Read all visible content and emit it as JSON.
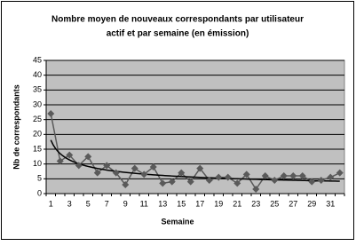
{
  "chart_data": {
    "type": "line",
    "title": [
      "Nombre moyen de nouveaux correspondants par utilisateur",
      "actif et par semaine (en émission)"
    ],
    "x_label": "Semaine",
    "y_label": "Nb de correspondants",
    "categories": [
      1,
      null,
      3,
      null,
      5,
      null,
      7,
      null,
      9,
      null,
      11,
      null,
      13,
      null,
      15,
      null,
      17,
      null,
      19,
      null,
      21,
      null,
      23,
      null,
      25,
      null,
      27,
      null,
      29,
      null,
      31,
      null
    ],
    "series": [
      {
        "color": "#5a5a5a",
        "values": [
          27,
          11,
          13,
          9.5,
          12.5,
          7,
          9.5,
          7,
          3,
          8.5,
          6.5,
          9,
          3.5,
          4,
          7,
          4,
          8.5,
          4.5,
          5.5,
          5.5,
          3.5,
          6.5,
          1.5,
          6,
          4.5,
          6,
          6,
          6,
          4,
          4.5,
          5.5,
          7
        ]
      }
    ],
    "trendline": "power",
    "trend_color": "#000000",
    "ylim": [
      0,
      45
    ],
    "yticks": [
      0,
      5,
      10,
      15,
      20,
      25,
      30,
      35,
      40,
      45
    ],
    "grid": true,
    "plot_background": "#c0c0c0"
  }
}
